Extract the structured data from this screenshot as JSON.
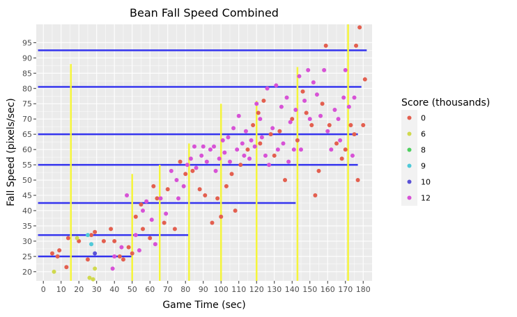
{
  "chart_data": {
    "type": "scatter",
    "title": "Bean Fall Speed Combined",
    "xlabel": "Game Time (sec)",
    "ylabel": "Fall Speed (pixels/sec)",
    "xlim": [
      -4,
      185
    ],
    "ylim": [
      17,
      101
    ],
    "x_ticks": [
      0,
      10,
      20,
      30,
      40,
      50,
      60,
      70,
      80,
      90,
      100,
      110,
      120,
      130,
      140,
      150,
      160,
      170,
      180
    ],
    "y_ticks": [
      20,
      25,
      30,
      35,
      40,
      45,
      50,
      55,
      60,
      65,
      70,
      75,
      80,
      85,
      90,
      95
    ],
    "grid": true,
    "legend": {
      "title": "Score (thousands)",
      "position": "right",
      "entries": [
        {
          "label": "0",
          "color": "#e35f4f"
        },
        {
          "label": "6",
          "color": "#d0d94e"
        },
        {
          "label": "8",
          "color": "#4fcf5f"
        },
        {
          "label": "9",
          "color": "#4fc9d8"
        },
        {
          "label": "10",
          "color": "#5a52d6"
        },
        {
          "label": "12",
          "color": "#d752d6"
        }
      ]
    },
    "hlines": [
      {
        "y": 25,
        "x0": -3,
        "x1": 50
      },
      {
        "y": 32,
        "x0": -3,
        "x1": 82
      },
      {
        "y": 42.5,
        "x0": -3,
        "x1": 142
      },
      {
        "y": 55,
        "x0": -3,
        "x1": 177
      },
      {
        "y": 65,
        "x0": -3,
        "x1": 177
      },
      {
        "y": 80.5,
        "x0": -3,
        "x1": 179
      },
      {
        "y": 92.5,
        "x0": -3,
        "x1": 182
      }
    ],
    "vlines": [
      {
        "x": 15.5,
        "y0": 17,
        "y1": 88
      },
      {
        "x": 50,
        "y0": 17,
        "y1": 52
      },
      {
        "x": 65.5,
        "y0": 17,
        "y1": 55
      },
      {
        "x": 82,
        "y0": 17,
        "y1": 62
      },
      {
        "x": 100,
        "y0": 17,
        "y1": 75
      },
      {
        "x": 120,
        "y0": 17,
        "y1": 76
      },
      {
        "x": 143,
        "y0": 17,
        "y1": 87
      },
      {
        "x": 171.5,
        "y0": 17,
        "y1": 101
      }
    ],
    "series": [
      {
        "name": "0",
        "points": [
          [
            5,
            26
          ],
          [
            8,
            25
          ],
          [
            9,
            27
          ],
          [
            13,
            21.5
          ],
          [
            14,
            31
          ],
          [
            20,
            30
          ],
          [
            25,
            24
          ],
          [
            27,
            32
          ],
          [
            29,
            33
          ],
          [
            34,
            30
          ],
          [
            38,
            34
          ],
          [
            40,
            30
          ],
          [
            43,
            25
          ],
          [
            45,
            24
          ],
          [
            48,
            28
          ],
          [
            50,
            26
          ],
          [
            52,
            38
          ],
          [
            55,
            42
          ],
          [
            56,
            34
          ],
          [
            60,
            31
          ],
          [
            62,
            48
          ],
          [
            64,
            44
          ],
          [
            68,
            36
          ],
          [
            70,
            47
          ],
          [
            74,
            34
          ],
          [
            77,
            56
          ],
          [
            80,
            52
          ],
          [
            84,
            53
          ],
          [
            88,
            47
          ],
          [
            91,
            45
          ],
          [
            95,
            36
          ],
          [
            98,
            44
          ],
          [
            100,
            38
          ],
          [
            103,
            48
          ],
          [
            106,
            52
          ],
          [
            108,
            40
          ],
          [
            111,
            55
          ],
          [
            115,
            60
          ],
          [
            118,
            68
          ],
          [
            121,
            72
          ],
          [
            122,
            62
          ],
          [
            124,
            76
          ],
          [
            128,
            65
          ],
          [
            130,
            58
          ],
          [
            133,
            66
          ],
          [
            136,
            50
          ],
          [
            140,
            70
          ],
          [
            143,
            63
          ],
          [
            146,
            79
          ],
          [
            148,
            72
          ],
          [
            151,
            68
          ],
          [
            153,
            45
          ],
          [
            155,
            53
          ],
          [
            157,
            75
          ],
          [
            159,
            94
          ],
          [
            161,
            68
          ],
          [
            165,
            62
          ],
          [
            168,
            57
          ],
          [
            170,
            60
          ],
          [
            173,
            68
          ],
          [
            175,
            65
          ],
          [
            176,
            94
          ],
          [
            177,
            50
          ],
          [
            178,
            100
          ],
          [
            180,
            68
          ],
          [
            181,
            83
          ]
        ]
      },
      {
        "name": "6",
        "points": [
          [
            6,
            20
          ],
          [
            19,
            31
          ],
          [
            26,
            18
          ],
          [
            28,
            17.5
          ],
          [
            29,
            21
          ]
        ]
      },
      {
        "name": "8",
        "points": []
      },
      {
        "name": "9",
        "points": [
          [
            25,
            32
          ],
          [
            27,
            29
          ]
        ]
      },
      {
        "name": "10",
        "points": [
          [
            29,
            26
          ]
        ]
      },
      {
        "name": "12",
        "points": [
          [
            39,
            21
          ],
          [
            40,
            25
          ],
          [
            44,
            28
          ],
          [
            47,
            45
          ],
          [
            52,
            32
          ],
          [
            54,
            27
          ],
          [
            56,
            40
          ],
          [
            58,
            43
          ],
          [
            61,
            37
          ],
          [
            63,
            29
          ],
          [
            66,
            44
          ],
          [
            69,
            39
          ],
          [
            72,
            53
          ],
          [
            75,
            50
          ],
          [
            76,
            44
          ],
          [
            79,
            48
          ],
          [
            81,
            55
          ],
          [
            83,
            57
          ],
          [
            85,
            61
          ],
          [
            86,
            54
          ],
          [
            89,
            58
          ],
          [
            90,
            61
          ],
          [
            92,
            56
          ],
          [
            94,
            60
          ],
          [
            96,
            61
          ],
          [
            97,
            53
          ],
          [
            99,
            57
          ],
          [
            101,
            63
          ],
          [
            102,
            59
          ],
          [
            104,
            64
          ],
          [
            105,
            56
          ],
          [
            107,
            67
          ],
          [
            109,
            60
          ],
          [
            110,
            71
          ],
          [
            112,
            62
          ],
          [
            113,
            58
          ],
          [
            114,
            66
          ],
          [
            116,
            57
          ],
          [
            117,
            63
          ],
          [
            119,
            61
          ],
          [
            120,
            75
          ],
          [
            122,
            70
          ],
          [
            123,
            64
          ],
          [
            125,
            58
          ],
          [
            126,
            80
          ],
          [
            127,
            55
          ],
          [
            129,
            67
          ],
          [
            131,
            81
          ],
          [
            132,
            60
          ],
          [
            134,
            74
          ],
          [
            135,
            62
          ],
          [
            137,
            77
          ],
          [
            138,
            56
          ],
          [
            139,
            69
          ],
          [
            141,
            60
          ],
          [
            142,
            73
          ],
          [
            144,
            84
          ],
          [
            145,
            60
          ],
          [
            147,
            76
          ],
          [
            149,
            86
          ],
          [
            150,
            70
          ],
          [
            152,
            82
          ],
          [
            154,
            78
          ],
          [
            156,
            71
          ],
          [
            158,
            86
          ],
          [
            160,
            66
          ],
          [
            162,
            60
          ],
          [
            164,
            73
          ],
          [
            166,
            70
          ],
          [
            167,
            63
          ],
          [
            169,
            77
          ],
          [
            170,
            86
          ],
          [
            172,
            74
          ],
          [
            174,
            58
          ],
          [
            175,
            77
          ]
        ]
      }
    ]
  }
}
